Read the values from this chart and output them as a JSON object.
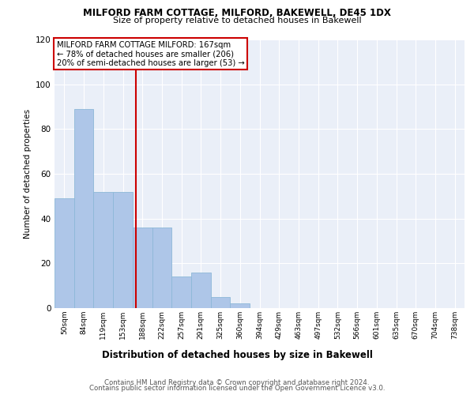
{
  "title1": "MILFORD FARM COTTAGE, MILFORD, BAKEWELL, DE45 1DX",
  "title2": "Size of property relative to detached houses in Bakewell",
  "xlabel": "Distribution of detached houses by size in Bakewell",
  "ylabel": "Number of detached properties",
  "footer1": "Contains HM Land Registry data © Crown copyright and database right 2024.",
  "footer2": "Contains public sector information licensed under the Open Government Licence v3.0.",
  "annotation_line1": "MILFORD FARM COTTAGE MILFORD: 167sqm",
  "annotation_line2": "← 78% of detached houses are smaller (206)",
  "annotation_line3": "20% of semi-detached houses are larger (53) →",
  "bar_labels": [
    "50sqm",
    "84sqm",
    "119sqm",
    "153sqm",
    "188sqm",
    "222sqm",
    "257sqm",
    "291sqm",
    "325sqm",
    "360sqm",
    "394sqm",
    "429sqm",
    "463sqm",
    "497sqm",
    "532sqm",
    "566sqm",
    "601sqm",
    "635sqm",
    "670sqm",
    "704sqm",
    "738sqm"
  ],
  "bar_values": [
    49,
    89,
    52,
    52,
    36,
    36,
    14,
    16,
    5,
    2,
    0,
    0,
    0,
    0,
    0,
    0,
    0,
    0,
    0,
    0,
    0
  ],
  "bar_color": "#aec6e8",
  "bar_edge_color": "#8db8d8",
  "vline_x": 3.67,
  "vline_color": "#cc0000",
  "box_color": "#cc0000",
  "background_color": "#eaeff8",
  "ylim": [
    0,
    120
  ],
  "yticks": [
    0,
    20,
    40,
    60,
    80,
    100,
    120
  ]
}
